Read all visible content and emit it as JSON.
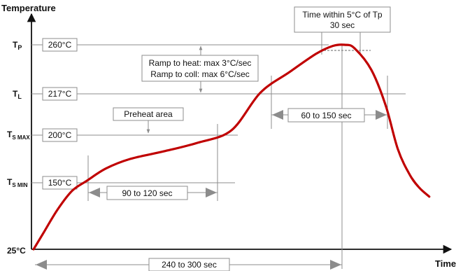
{
  "chart_data": {
    "type": "line",
    "xlabel": "Time",
    "ylabel": "Temperature",
    "y_axis_origin_label": "25°C",
    "y_levels": [
      {
        "name": "TP",
        "base": "T",
        "sub": "P",
        "value_label": "260°C",
        "value": 260
      },
      {
        "name": "TL",
        "base": "T",
        "sub": "L",
        "value_label": "217°C",
        "value": 217
      },
      {
        "name": "TSMAX",
        "base": "T",
        "sub": "S MAX",
        "value_label": "200°C",
        "value": 200
      },
      {
        "name": "TSMIN",
        "base": "T",
        "sub": "S MIN",
        "value_label": "150°C",
        "value": 150
      }
    ],
    "series": [
      {
        "color": "#c00000",
        "points": [
          [
            0,
            25
          ],
          [
            0.02,
            55
          ],
          [
            0.05,
            100
          ],
          [
            0.08,
            135
          ],
          [
            0.11,
            152
          ],
          [
            0.15,
            165
          ],
          [
            0.2,
            175
          ],
          [
            0.27,
            183
          ],
          [
            0.34,
            192
          ],
          [
            0.41,
            202
          ],
          [
            0.47,
            218
          ],
          [
            0.53,
            236
          ],
          [
            0.585,
            252
          ],
          [
            0.62,
            259
          ],
          [
            0.645,
            260
          ],
          [
            0.665,
            257
          ],
          [
            0.7,
            238
          ],
          [
            0.73,
            212
          ],
          [
            0.755,
            185
          ],
          [
            0.78,
            158
          ],
          [
            0.8,
            140
          ],
          [
            0.82,
            124
          ]
        ]
      }
    ],
    "annotations": {
      "ramp_line1": "Ramp to heat: max 3°C/sec",
      "ramp_line2": "Ramp to coll: max 6°C/sec",
      "preheat": "Preheat area",
      "time_tp_line1": "Time within 5°C of Tp",
      "time_tp_line2": "30 sec",
      "dur_60_150": "60 to 150 sec",
      "dur_90_120": "90 to 120 sec",
      "dur_240_300": "240 to 300 sec"
    }
  }
}
